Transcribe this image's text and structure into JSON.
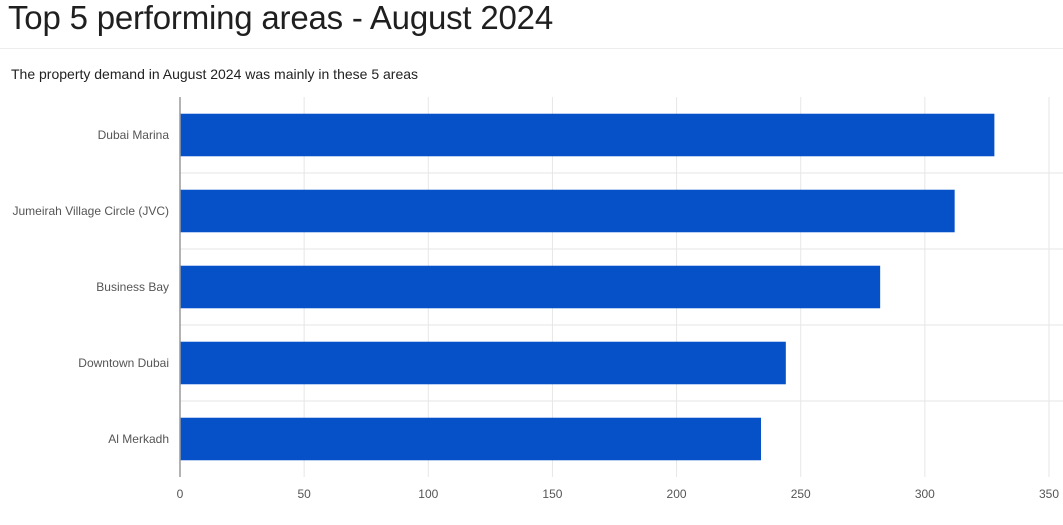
{
  "title": "Top 5 performing areas - August 2024",
  "subtitle": "The property demand in August 2024 was mainly in these 5 areas",
  "chart_data": {
    "type": "bar",
    "orientation": "horizontal",
    "title": "",
    "xlabel": "",
    "ylabel": "",
    "categories": [
      "Dubai Marina",
      "Jumeirah Village Circle (JVC)",
      "Business Bay",
      "Downtown Dubai",
      "Al Merkadh"
    ],
    "values": [
      328,
      312,
      282,
      244,
      234
    ],
    "xlim": [
      0,
      350
    ],
    "xticks": [
      "0",
      "50",
      "100",
      "150",
      "200",
      "250",
      "300",
      "350"
    ],
    "grid": true,
    "bar_color": "#0650c8"
  }
}
